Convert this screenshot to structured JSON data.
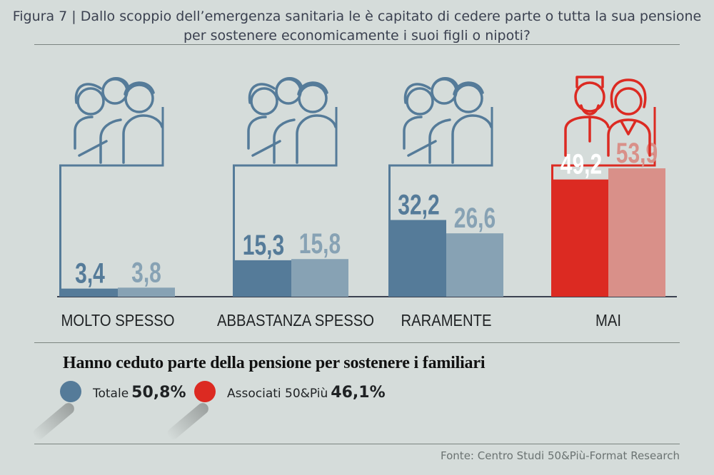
{
  "title": "Figura 7 | Dallo scoppio dell’emergenza sanitaria le è capitato di cedere parte o tutta la sua pensione per sostenere economicamente i suoi figli o nipoti?",
  "chart_data": {
    "type": "bar",
    "categories": [
      "MOLTO SPESSO",
      "ABBASTANZA SPESSO",
      "RARAMENTE",
      "MAI"
    ],
    "series": [
      {
        "values": [
          3.4,
          15.3,
          32.2,
          49.2
        ]
      },
      {
        "values": [
          3.8,
          15.8,
          26.6,
          53.9
        ]
      }
    ],
    "value_labels": [
      [
        "3,4",
        "3,8"
      ],
      [
        "15,3",
        "15,8"
      ],
      [
        "32,2",
        "26,6"
      ],
      [
        "49,2",
        "53,9"
      ]
    ],
    "colors": {
      "blue_dark": "#557b99",
      "blue_light": "#87a2b4",
      "red_dark": "#dc2a22",
      "red_light": "#d99089"
    },
    "ylim": [
      0,
      100
    ],
    "grid": false
  },
  "legend": {
    "title": "Hanno ceduto parte della pensione per sostenere i familiari",
    "items": [
      {
        "label": "Totale",
        "value": "50,8%",
        "color": "#557b99"
      },
      {
        "label": "Associati 50&Più",
        "value": "46,1%",
        "color": "#dc2a22"
      }
    ]
  },
  "icons": [
    "family-icon",
    "family-icon",
    "family-icon",
    "elderly-couple-icon"
  ],
  "source": "Fonte: Centro Studi 50&Più-Format Research"
}
